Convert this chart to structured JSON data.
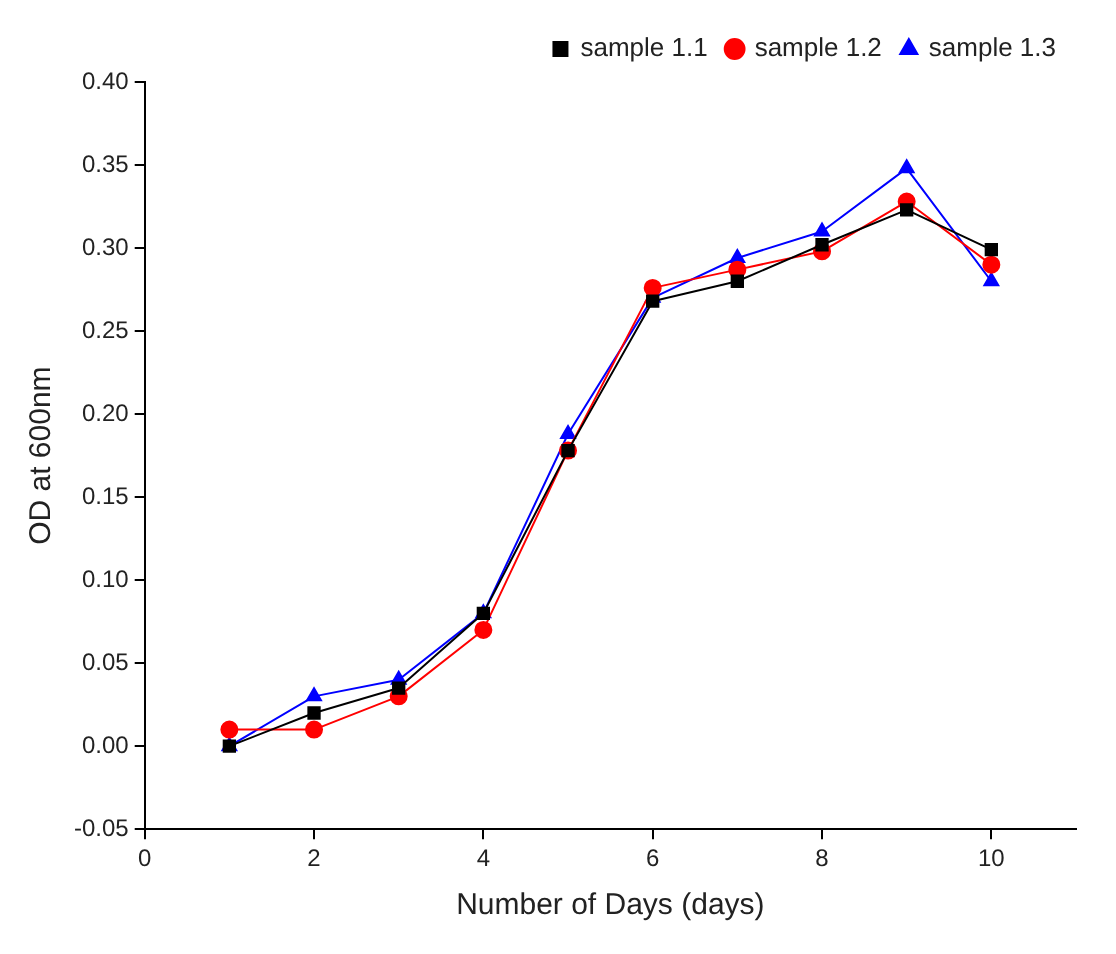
{
  "chart_data": {
    "type": "line",
    "xlabel": "Number of Days (days)",
    "ylabel": "OD at 600nm",
    "x": [
      1,
      2,
      3,
      4,
      5,
      6,
      7,
      8,
      9,
      10
    ],
    "series": [
      {
        "name": "sample 1.1",
        "color": "#000000",
        "marker": "square",
        "values": [
          0,
          0.02,
          0.035,
          0.08,
          0.178,
          0.268,
          0.28,
          0.302,
          0.323,
          0.299
        ]
      },
      {
        "name": "sample 1.2",
        "color": "#ff0000",
        "marker": "circle",
        "values": [
          0.01,
          0.01,
          0.03,
          0.07,
          0.178,
          0.276,
          0.287,
          0.298,
          0.328,
          0.29
        ]
      },
      {
        "name": "sample 1.3",
        "color": "#0000ff",
        "marker": "triangle",
        "values": [
          0,
          0.03,
          0.04,
          0.08,
          0.188,
          0.27,
          0.294,
          0.31,
          0.348,
          0.28
        ]
      }
    ],
    "xlim": [
      0,
      11
    ],
    "xticks": [
      0,
      2,
      4,
      6,
      8,
      10
    ],
    "ylim": [
      -0.05,
      0.4
    ],
    "yticks": [
      {
        "value": -0.05,
        "label": "-0.05"
      },
      {
        "value": 0,
        "label": "0.00"
      },
      {
        "value": 0.05,
        "label": "0.05"
      },
      {
        "value": 0.1,
        "label": "0.10"
      },
      {
        "value": 0.15,
        "label": "0.15"
      },
      {
        "value": 0.2,
        "label": "0.20"
      },
      {
        "value": 0.25,
        "label": "0.25"
      },
      {
        "value": 0.3,
        "label": "0.30"
      },
      {
        "value": 0.35,
        "label": "0.35"
      },
      {
        "value": 0.4,
        "label": "0.40"
      }
    ],
    "grid": false,
    "legend": "top right",
    "line_style": "solid"
  }
}
